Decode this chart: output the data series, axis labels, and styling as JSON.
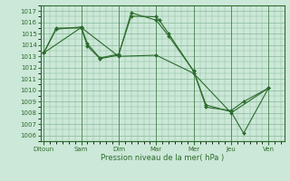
{
  "xlabel": "Pression niveau de la mer( hPa )",
  "background_color": "#cce8d8",
  "grid_color": "#88b898",
  "line_color": "#2d6b2d",
  "ylim": [
    1005.5,
    1017.5
  ],
  "yticks": [
    1006,
    1007,
    1008,
    1009,
    1010,
    1011,
    1012,
    1013,
    1014,
    1015,
    1016,
    1017
  ],
  "day_labels": [
    "Ditoun",
    "Sam",
    "Dim",
    "Mar",
    "Mer",
    "Jeu",
    "Ven"
  ],
  "day_positions": [
    0,
    6,
    12,
    18,
    24,
    30,
    36
  ],
  "xlim": [
    -0.5,
    38.5
  ],
  "lines": [
    {
      "x": [
        0,
        2,
        6,
        7,
        9,
        12,
        14,
        18,
        18.5,
        20,
        24,
        26,
        30,
        32,
        36
      ],
      "y": [
        1013.3,
        1015.4,
        1015.6,
        1014.1,
        1012.85,
        1013.2,
        1016.55,
        1016.5,
        1016.2,
        1015.0,
        1011.7,
        1008.7,
        1008.1,
        1006.2,
        1010.2
      ]
    },
    {
      "x": [
        0,
        2,
        6,
        7,
        9,
        12,
        14,
        18,
        20,
        24,
        26,
        30,
        32,
        36
      ],
      "y": [
        1013.3,
        1015.5,
        1015.5,
        1013.9,
        1012.8,
        1013.1,
        1016.85,
        1016.2,
        1014.8,
        1011.7,
        1008.5,
        1008.2,
        1009.0,
        1010.2
      ]
    },
    {
      "x": [
        0,
        6,
        12,
        18,
        24,
        30,
        36
      ],
      "y": [
        1013.3,
        1015.55,
        1013.0,
        1013.1,
        1011.5,
        1008.0,
        1010.2
      ]
    }
  ]
}
